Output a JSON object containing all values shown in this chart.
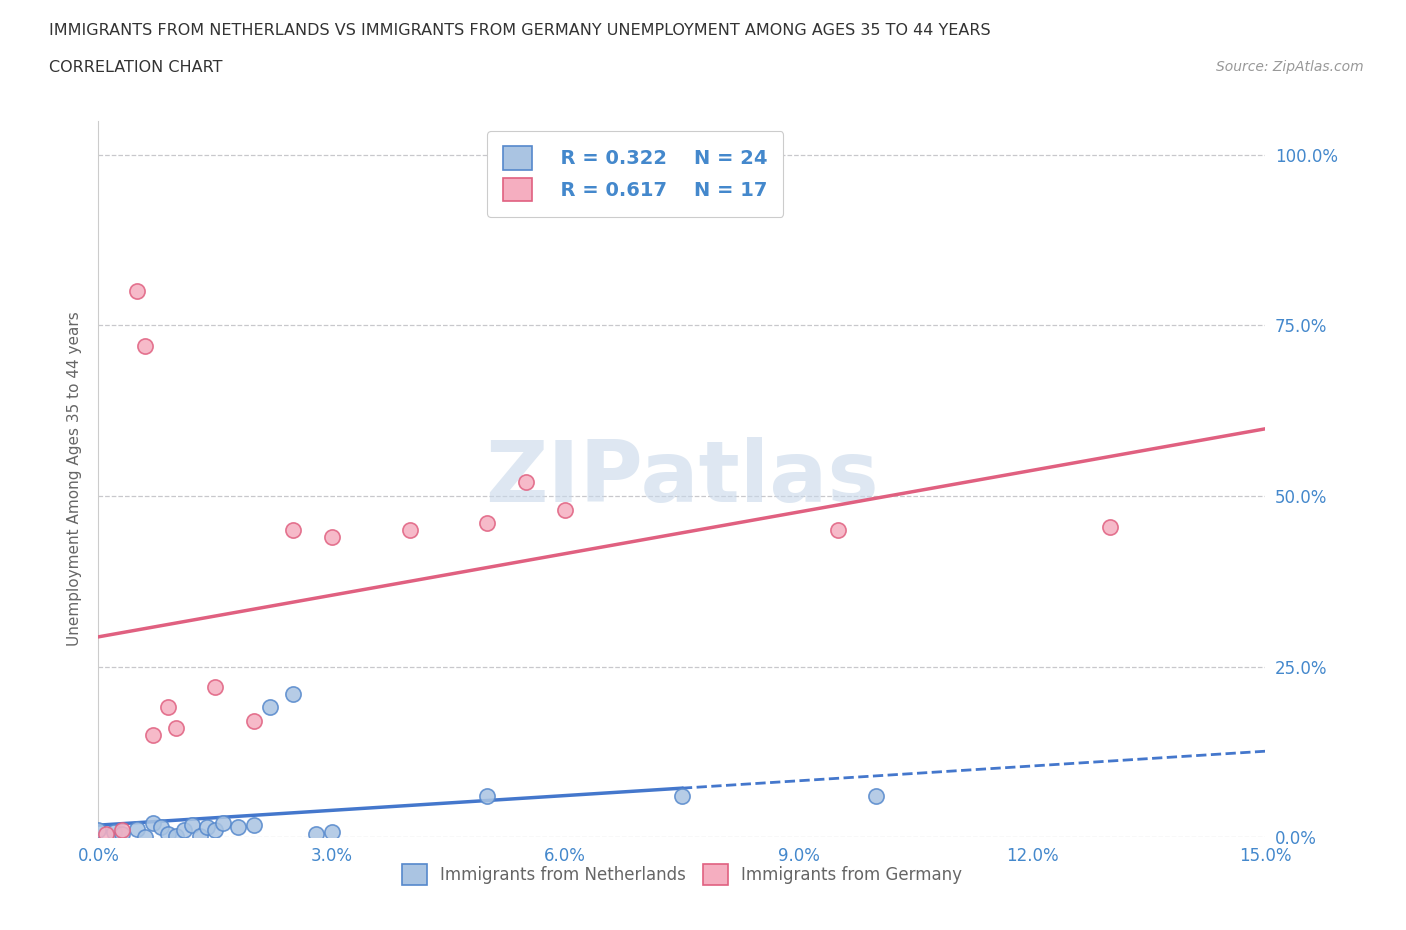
{
  "title_line1": "IMMIGRANTS FROM NETHERLANDS VS IMMIGRANTS FROM GERMANY UNEMPLOYMENT AMONG AGES 35 TO 44 YEARS",
  "title_line2": "CORRELATION CHART",
  "source_text": "Source: ZipAtlas.com",
  "ylabel": "Unemployment Among Ages 35 to 44 years",
  "xlim": [
    0.0,
    0.15
  ],
  "ylim": [
    0.0,
    1.05
  ],
  "xticks": [
    0.0,
    0.03,
    0.06,
    0.09,
    0.12,
    0.15
  ],
  "xtick_labels": [
    "0.0%",
    "3.0%",
    "6.0%",
    "9.0%",
    "12.0%",
    "15.0%"
  ],
  "ytick_vals": [
    0.0,
    0.25,
    0.5,
    0.75,
    1.0
  ],
  "ytick_labels": [
    "0.0%",
    "25.0%",
    "50.0%",
    "75.0%",
    "100.0%"
  ],
  "netherlands_color": "#aac4e2",
  "netherlands_edge": "#5588cc",
  "germany_color": "#f5aec0",
  "germany_edge": "#e06080",
  "netherlands_R": 0.322,
  "netherlands_N": 24,
  "germany_R": 0.617,
  "germany_N": 17,
  "netherlands_x": [
    0.0,
    0.002,
    0.003,
    0.005,
    0.006,
    0.007,
    0.008,
    0.009,
    0.01,
    0.011,
    0.012,
    0.013,
    0.014,
    0.015,
    0.016,
    0.018,
    0.02,
    0.022,
    0.025,
    0.028,
    0.03,
    0.05,
    0.075,
    0.1
  ],
  "netherlands_y": [
    0.01,
    0.008,
    0.005,
    0.012,
    0.0,
    0.02,
    0.015,
    0.005,
    0.002,
    0.01,
    0.018,
    0.002,
    0.015,
    0.01,
    0.02,
    0.015,
    0.018,
    0.19,
    0.21,
    0.005,
    0.008,
    0.06,
    0.06,
    0.06
  ],
  "germany_x": [
    0.001,
    0.003,
    0.005,
    0.006,
    0.007,
    0.009,
    0.01,
    0.015,
    0.02,
    0.025,
    0.03,
    0.04,
    0.05,
    0.055,
    0.06,
    0.095,
    0.13
  ],
  "germany_y": [
    0.005,
    0.01,
    0.8,
    0.72,
    0.15,
    0.19,
    0.16,
    0.22,
    0.17,
    0.45,
    0.44,
    0.45,
    0.46,
    0.52,
    0.48,
    0.45,
    0.455
  ],
  "watermark_text": "ZIPatlas",
  "watermark_color": "#c8d8ea",
  "grid_color": "#c8c8cc",
  "tick_label_color": "#4488cc",
  "axis_label_color": "#666666",
  "title_color": "#333333",
  "regression_nl_color": "#4477cc",
  "regression_de_color": "#e06080",
  "legend_text_color": "#4488cc",
  "legend_R_nl": "R = 0.322",
  "legend_N_nl": "N = 24",
  "legend_R_de": "R = 0.617",
  "legend_N_de": "N = 17",
  "legend_label_nl": "Immigrants from Netherlands",
  "legend_label_de": "Immigrants from Germany"
}
